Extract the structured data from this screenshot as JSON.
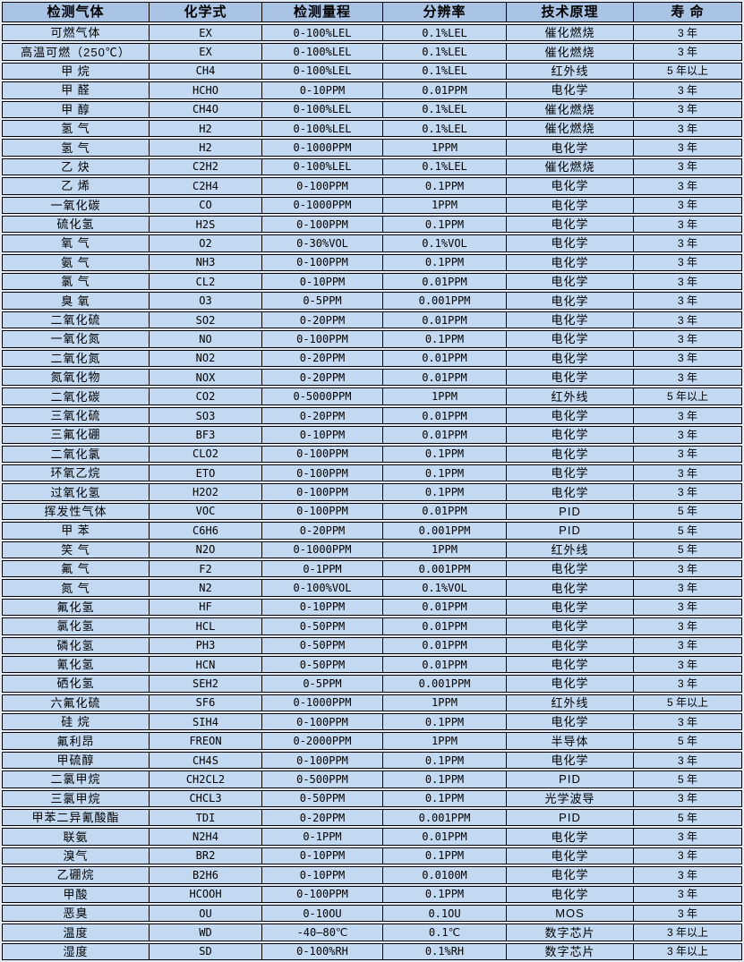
{
  "colors": {
    "header_bg": "#a9c3e5",
    "row_bg": "#c3d9f1",
    "gap_bg": "#e4ecf7",
    "border": "#000000",
    "text": "#000000"
  },
  "table": {
    "columns": [
      "检测气体",
      "化学式",
      "检测量程",
      "分辨率",
      "技术原理",
      "寿 命"
    ],
    "rows": [
      [
        "可燃气体",
        "EX",
        "0-100%LEL",
        "0.1%LEL",
        "催化燃烧",
        "3 年"
      ],
      [
        "高温可燃（250℃）",
        "EX",
        "0-100%LEL",
        "0.1%LEL",
        "催化燃烧",
        "3 年"
      ],
      [
        "甲 烷",
        "CH4",
        "0-100%LEL",
        "0.1%LEL",
        "红外线",
        "5 年以上"
      ],
      [
        "甲 醛",
        "HCHO",
        "0-10PPM",
        "0.01PPM",
        "电化学",
        "3 年"
      ],
      [
        "甲 醇",
        "CH4O",
        "0-100%LEL",
        "0.1%LEL",
        "催化燃烧",
        "3 年"
      ],
      [
        "氢 气",
        "H2",
        "0-100%LEL",
        "0.1%LEL",
        "催化燃烧",
        "3 年"
      ],
      [
        "氢 气",
        "H2",
        "0-1000PPM",
        "1PPM",
        "电化学",
        "3 年"
      ],
      [
        "乙 炔",
        "C2H2",
        "0-100%LEL",
        "0.1%LEL",
        "催化燃烧",
        "3 年"
      ],
      [
        "乙 烯",
        "C2H4",
        "0-100PPM",
        "0.1PPM",
        "电化学",
        "3 年"
      ],
      [
        "一氧化碳",
        "CO",
        "0-1000PPM",
        "1PPM",
        "电化学",
        "3 年"
      ],
      [
        "硫化氢",
        "H2S",
        "0-100PPM",
        "0.1PPM",
        "电化学",
        "3 年"
      ],
      [
        "氧 气",
        "O2",
        "0-30%VOL",
        "0.1%VOL",
        "电化学",
        "3 年"
      ],
      [
        "氨 气",
        "NH3",
        "0-100PPM",
        "0.1PPM",
        "电化学",
        "3 年"
      ],
      [
        "氯 气",
        "CL2",
        "0-10PPM",
        "0.01PPM",
        "电化学",
        "3 年"
      ],
      [
        "臭 氧",
        "O3",
        "0-5PPM",
        "0.001PPM",
        "电化学",
        "3 年"
      ],
      [
        "二氧化硫",
        "SO2",
        "0-20PPM",
        "0.01PPM",
        "电化学",
        "3 年"
      ],
      [
        "一氧化氮",
        "NO",
        "0-100PPM",
        "0.1PPM",
        "电化学",
        "3 年"
      ],
      [
        "二氧化氮",
        "NO2",
        "0-20PPM",
        "0.01PPM",
        "电化学",
        "3 年"
      ],
      [
        "氮氧化物",
        "NOX",
        "0-20PPM",
        "0.01PPM",
        "电化学",
        "3 年"
      ],
      [
        "二氧化碳",
        "CO2",
        "0-5000PPM",
        "1PPM",
        "红外线",
        "5 年以上"
      ],
      [
        "三氧化硫",
        "SO3",
        "0-20PPM",
        "0.01PPM",
        "电化学",
        "3 年"
      ],
      [
        "三氟化硼",
        "BF3",
        "0-10PPM",
        "0.01PPM",
        "电化学",
        "3 年"
      ],
      [
        "二氧化氯",
        "CLO2",
        "0-100PPM",
        "0.1PPM",
        "电化学",
        "3 年"
      ],
      [
        "环氧乙烷",
        "ETO",
        "0-100PPM",
        "0.1PPM",
        "电化学",
        "3 年"
      ],
      [
        "过氧化氢",
        "H2O2",
        "0-100PPM",
        "0.1PPM",
        "电化学",
        "3 年"
      ],
      [
        "挥发性气体",
        "VOC",
        "0-100PPM",
        "0.01PPM",
        "PID",
        "5 年"
      ],
      [
        "甲 苯",
        "C6H6",
        "0-20PPM",
        "0.001PPM",
        "PID",
        "5 年"
      ],
      [
        "笑 气",
        "N2O",
        "0-1000PPM",
        "1PPM",
        "红外线",
        "5 年"
      ],
      [
        "氟 气",
        "F2",
        "0-1PPM",
        "0.001PPM",
        "电化学",
        "3 年"
      ],
      [
        "氮 气",
        "N2",
        "0-100%VOL",
        "0.1%VOL",
        "电化学",
        "3 年"
      ],
      [
        "氟化氢",
        "HF",
        "0-10PPM",
        "0.01PPM",
        "电化学",
        "3 年"
      ],
      [
        "氯化氢",
        "HCL",
        "0-50PPM",
        "0.01PPM",
        "电化学",
        "3 年"
      ],
      [
        "磷化氢",
        "PH3",
        "0-50PPM",
        "0.01PPM",
        "电化学",
        "3 年"
      ],
      [
        "氰化氢",
        "HCN",
        "0-50PPM",
        "0.01PPM",
        "电化学",
        "3 年"
      ],
      [
        "硒化氢",
        "SEH2",
        "0-5PPM",
        "0.001PPM",
        "电化学",
        "3 年"
      ],
      [
        "六氟化硫",
        "SF6",
        "0-1000PPM",
        "1PPM",
        "红外线",
        "5 年以上"
      ],
      [
        "硅 烷",
        "SIH4",
        "0-100PPM",
        "0.1PPM",
        "电化学",
        "3 年"
      ],
      [
        "氟利昂",
        "FREON",
        "0-2000PPM",
        "1PPM",
        "半导体",
        "5 年"
      ],
      [
        "甲硫醇",
        "CH4S",
        "0-100PPM",
        "0.1PPM",
        "电化学",
        "3 年"
      ],
      [
        "二氯甲烷",
        "CH2CL2",
        "0-500PPM",
        "0.1PPM",
        "PID",
        "5 年"
      ],
      [
        "三氯甲烷",
        "CHCL3",
        "0-50PPM",
        "0.1PPM",
        "光学波导",
        "3 年"
      ],
      [
        "甲苯二异氰酸酯",
        "TDI",
        "0-20PPM",
        "0.001PPM",
        "PID",
        "5 年"
      ],
      [
        "联氨",
        "N2H4",
        "0-1PPM",
        "0.01PPM",
        "电化学",
        "3 年"
      ],
      [
        "溴气",
        "BR2",
        "0-10PPM",
        "0.1PPM",
        "电化学",
        "3 年"
      ],
      [
        "乙硼烷",
        "B2H6",
        "0-10PPM",
        "0.0100M",
        "电化学",
        "3 年"
      ],
      [
        "甲酸",
        "HCOOH",
        "0-100PPM",
        "0.1PPM",
        "电化学",
        "3 年"
      ],
      [
        "恶臭",
        "OU",
        "0-10OU",
        "0.1OU",
        "MOS",
        "3 年"
      ],
      [
        "温度",
        "WD",
        "-40—80℃",
        "0.1℃",
        "数字芯片",
        "3 年以上"
      ],
      [
        "湿度",
        "SD",
        "0-100%RH",
        "0.1%RH",
        "数字芯片",
        "3 年以上"
      ]
    ]
  }
}
